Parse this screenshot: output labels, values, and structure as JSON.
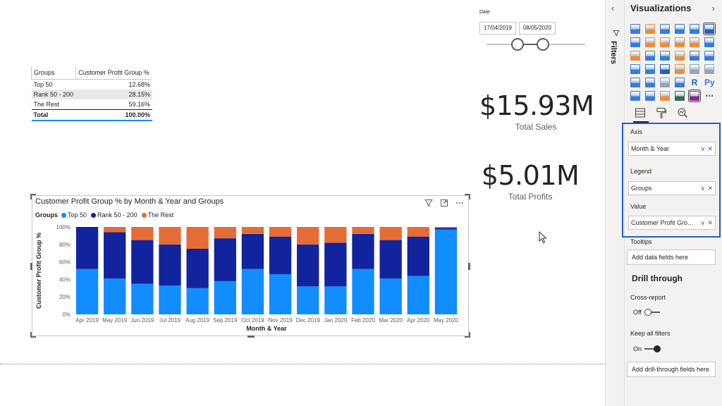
{
  "table": {
    "headers": [
      "Groups",
      "Customer Profit Group %"
    ],
    "rows": [
      {
        "group": "Top 50",
        "value": "12.68%"
      },
      {
        "group": "Rank 50 - 200",
        "value": "28.15%"
      },
      {
        "group": "The Rest",
        "value": "59.16%"
      }
    ],
    "total": {
      "group": "Total",
      "value": "100.00%"
    }
  },
  "date_slicer": {
    "title": "Date",
    "from": "17/04/2019",
    "to": "08/05/2020"
  },
  "cards": {
    "sales": {
      "value": "$15.93M",
      "label": "Total Sales"
    },
    "profits": {
      "value": "$5.01M",
      "label": "Total Profits"
    }
  },
  "chart": {
    "title": "Customer Profit Group % by Month & Year and Groups",
    "legend_title": "Groups",
    "toolbar_icons": [
      "filter-icon",
      "focus-mode-icon",
      "more-options-icon"
    ]
  },
  "chart_data": {
    "type": "bar",
    "stacked": true,
    "title": "Customer Profit Group % by Month & Year and Groups",
    "xlabel": "Month & Year",
    "ylabel": "Customer Profit Group %",
    "ylim": [
      0,
      100
    ],
    "yticks": [
      "0%",
      "20%",
      "40%",
      "60%",
      "80%",
      "100%"
    ],
    "legend_placement": "top-left",
    "categories": [
      "Apr 2019",
      "May 2019",
      "Jun 2019",
      "Jul 2019",
      "Aug 2019",
      "Sep 2019",
      "Oct 2019",
      "Nov 2019",
      "Dec 2019",
      "Jan 2020",
      "Feb 2020",
      "Mar 2020",
      "Apr 2020",
      "May 2020"
    ],
    "series": [
      {
        "name": "Top 50",
        "color": "#118dff",
        "values": [
          52,
          41,
          35,
          33,
          30,
          38,
          52,
          46,
          32,
          32,
          52,
          41,
          44,
          97
        ]
      },
      {
        "name": "Rank 50 - 200",
        "color": "#12239e",
        "values": [
          48,
          53,
          50,
          47,
          45,
          49,
          40,
          43,
          48,
          50,
          40,
          44,
          45,
          2
        ]
      },
      {
        "name": "The Rest",
        "color": "#e66c37",
        "values": [
          0,
          6,
          15,
          20,
          25,
          13,
          8,
          11,
          20,
          18,
          8,
          15,
          11,
          1
        ]
      }
    ]
  },
  "filters_pane": {
    "label": "Filters",
    "chevron": "‹"
  },
  "viz_pane": {
    "header": "Visualizations",
    "chevron": "›",
    "tabs": [
      "fields-tab-icon",
      "format-paint-icon",
      "analytics-icon"
    ],
    "wells": {
      "axis": {
        "label": "Axis",
        "field": "Month & Year"
      },
      "legend": {
        "label": "Legend",
        "field": "Groups"
      },
      "value": {
        "label": "Value",
        "field": "Customer Profit Group %"
      },
      "tooltips": {
        "label": "Tooltips",
        "placeholder": "Add data fields here"
      }
    },
    "drill_through": {
      "title": "Drill through",
      "cross_report": {
        "label": "Cross-report",
        "state": "Off"
      },
      "keep_all_filters": {
        "label": "Keep all filters",
        "state": "On"
      },
      "placeholder": "Add drill-through fields here"
    }
  }
}
